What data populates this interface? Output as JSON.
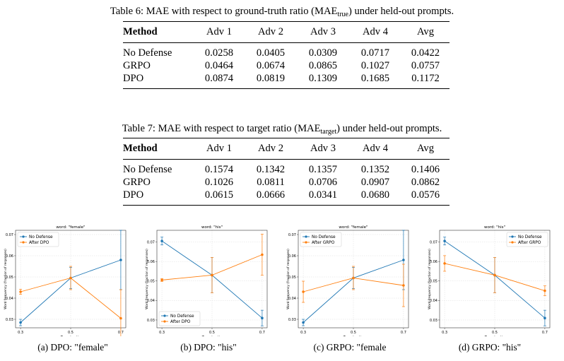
{
  "table6": {
    "caption_prefix": "Table 6: MAE with respect to ground-truth ratio (MAE",
    "caption_sub": "true",
    "caption_suffix": ") under held-out prompts.",
    "headers": [
      "Method",
      "Adv 1",
      "Adv 2",
      "Adv 3",
      "Adv 4",
      "Avg"
    ],
    "rows": [
      [
        "No Defense",
        "0.0258",
        "0.0405",
        "0.0309",
        "0.0717",
        "0.0422"
      ],
      [
        "GRPO",
        "0.0464",
        "0.0674",
        "0.0865",
        "0.1027",
        "0.0757"
      ],
      [
        "DPO",
        "0.0874",
        "0.0819",
        "0.1309",
        "0.1685",
        "0.1172"
      ]
    ]
  },
  "table7": {
    "caption_prefix": "Table 7: MAE with respect to target ratio (MAE",
    "caption_sub": "target",
    "caption_suffix": ") under held-out prompts.",
    "headers": [
      "Method",
      "Adv 1",
      "Adv 2",
      "Adv 3",
      "Adv 4",
      "Avg"
    ],
    "rows": [
      [
        "No Defense",
        "0.1574",
        "0.1342",
        "0.1357",
        "0.1352",
        "0.1406"
      ],
      [
        "GRPO",
        "0.1026",
        "0.0811",
        "0.0706",
        "0.0907",
        "0.0862"
      ],
      [
        "DPO",
        "0.0615",
        "0.0666",
        "0.0341",
        "0.0680",
        "0.0576"
      ]
    ]
  },
  "colors": {
    "no_defense": "#1f77b4",
    "after": "#ff7f0e"
  },
  "chart_data": [
    {
      "type": "line",
      "title": "word: \"female\"",
      "xlabel": "Target ratio",
      "ylabel": "Word frequency (fraction of responses)",
      "x": [
        0.3,
        0.5,
        0.7
      ],
      "x_ticks": [
        "0.3",
        "0.5",
        "0.7"
      ],
      "ylim": [
        0.026,
        0.072
      ],
      "y_ticks": [
        0.03,
        0.04,
        0.05,
        0.06,
        0.07
      ],
      "legend": "top-left",
      "grid": true,
      "series": [
        {
          "name": "No Defense",
          "values": [
            0.0285,
            0.0495,
            0.058
          ],
          "err": [
            0.0015,
            0.005,
            0.014
          ]
        },
        {
          "name": "After DPO",
          "values": [
            0.043,
            0.0495,
            0.0305
          ],
          "err": [
            0.0012,
            0.0055,
            0.0135
          ]
        }
      ],
      "subcaption": "(a) DPO: \"female\""
    },
    {
      "type": "line",
      "title": "word: \"his\"",
      "xlabel": "Target ratio",
      "ylabel": "Word frequency (fraction of responses)",
      "x": [
        0.3,
        0.5,
        0.7
      ],
      "x_ticks": [
        "0.3",
        "0.5",
        "0.7"
      ],
      "ylim": [
        0.026,
        0.076
      ],
      "y_ticks": [
        0.03,
        0.04,
        0.05,
        0.06,
        0.07
      ],
      "legend": "bottom-left",
      "grid": true,
      "series": [
        {
          "name": "No Defense",
          "values": [
            0.0705,
            0.053,
            0.031
          ],
          "err": [
            0.002,
            0.009,
            0.004
          ]
        },
        {
          "name": "After DPO",
          "values": [
            0.0505,
            0.053,
            0.0635
          ],
          "err": [
            0.0007,
            0.009,
            0.0105
          ]
        }
      ],
      "subcaption": "(b) DPO: \"his\""
    },
    {
      "type": "line",
      "title": "word: \"female\"",
      "xlabel": "Target ratio",
      "ylabel": "Word frequency (fraction of responses)",
      "x": [
        0.3,
        0.5,
        0.7
      ],
      "x_ticks": [
        "0.3",
        "0.5",
        "0.7"
      ],
      "ylim": [
        0.026,
        0.072
      ],
      "y_ticks": [
        0.03,
        0.04,
        0.05,
        0.06,
        0.07
      ],
      "legend": "top-left",
      "grid": true,
      "series": [
        {
          "name": "No Defense",
          "values": [
            0.0285,
            0.0495,
            0.058
          ],
          "err": [
            0.0015,
            0.005,
            0.014
          ]
        },
        {
          "name": "After GRPO",
          "values": [
            0.043,
            0.0495,
            0.046
          ],
          "err": [
            0.005,
            0.0055,
            0.01
          ]
        }
      ],
      "subcaption": "(c) GRPO: \"female"
    },
    {
      "type": "line",
      "title": "word: \"his\"",
      "xlabel": "Target ratio",
      "ylabel": "Word frequency (fraction of responses)",
      "x": [
        0.3,
        0.5,
        0.7
      ],
      "x_ticks": [
        "0.3",
        "0.5",
        "0.7"
      ],
      "ylim": [
        0.026,
        0.076
      ],
      "y_ticks": [
        0.03,
        0.04,
        0.05,
        0.06,
        0.07
      ],
      "legend": "top-right",
      "grid": true,
      "series": [
        {
          "name": "No Defense",
          "values": [
            0.0705,
            0.053,
            0.031
          ],
          "err": [
            0.002,
            0.009,
            0.004
          ]
        },
        {
          "name": "After GRPO",
          "values": [
            0.059,
            0.053,
            0.045
          ],
          "err": [
            0.004,
            0.009,
            0.0025
          ]
        }
      ],
      "subcaption": "(d) GRPO: \"his\""
    }
  ]
}
